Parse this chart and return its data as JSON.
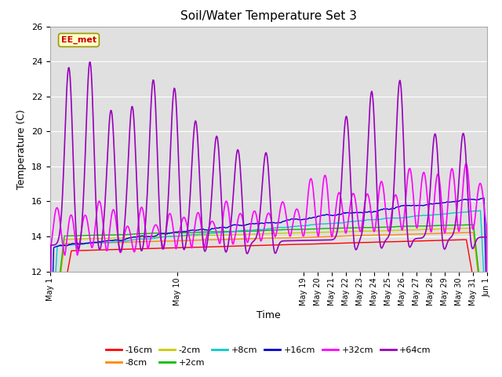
{
  "title": "Soil/Water Temperature Set 3",
  "xlabel": "Time",
  "ylabel": "Temperature (C)",
  "ylim": [
    12,
    26
  ],
  "yticks": [
    12,
    14,
    16,
    18,
    20,
    22,
    24,
    26
  ],
  "background_color": "#ffffff",
  "plot_bg_color": "#e0e0e0",
  "grid_color": "#ffffff",
  "series_order": [
    "-16cm",
    "-8cm",
    "-2cm",
    "+2cm",
    "+8cm",
    "+16cm",
    "+32cm",
    "+64cm"
  ],
  "series": {
    "-16cm": {
      "color": "#ff0000"
    },
    "-8cm": {
      "color": "#ff8800"
    },
    "-2cm": {
      "color": "#cccc00"
    },
    "+2cm": {
      "color": "#00bb00"
    },
    "+8cm": {
      "color": "#00cccc"
    },
    "+16cm": {
      "color": "#0000cc"
    },
    "+32cm": {
      "color": "#ff00ff"
    },
    "+64cm": {
      "color": "#9900bb"
    }
  },
  "annotation": {
    "text": "EE_met",
    "color": "#cc0000",
    "bg_color": "#ffffcc",
    "border_color": "#999900"
  },
  "n_days": 31,
  "pts_per_day": 24,
  "xtick_labels": [
    "May 1",
    "May 10",
    "May 19",
    "May 20",
    "May 21",
    "May 22",
    "May 23",
    "May 24",
    "May 25",
    "May 26",
    "May 27",
    "May 28",
    "May 29",
    "May 30",
    "May 31",
    "Jun 1"
  ],
  "xtick_days": [
    0,
    9,
    18,
    19,
    20,
    21,
    22,
    23,
    24,
    25,
    26,
    27,
    28,
    29,
    30,
    31
  ]
}
